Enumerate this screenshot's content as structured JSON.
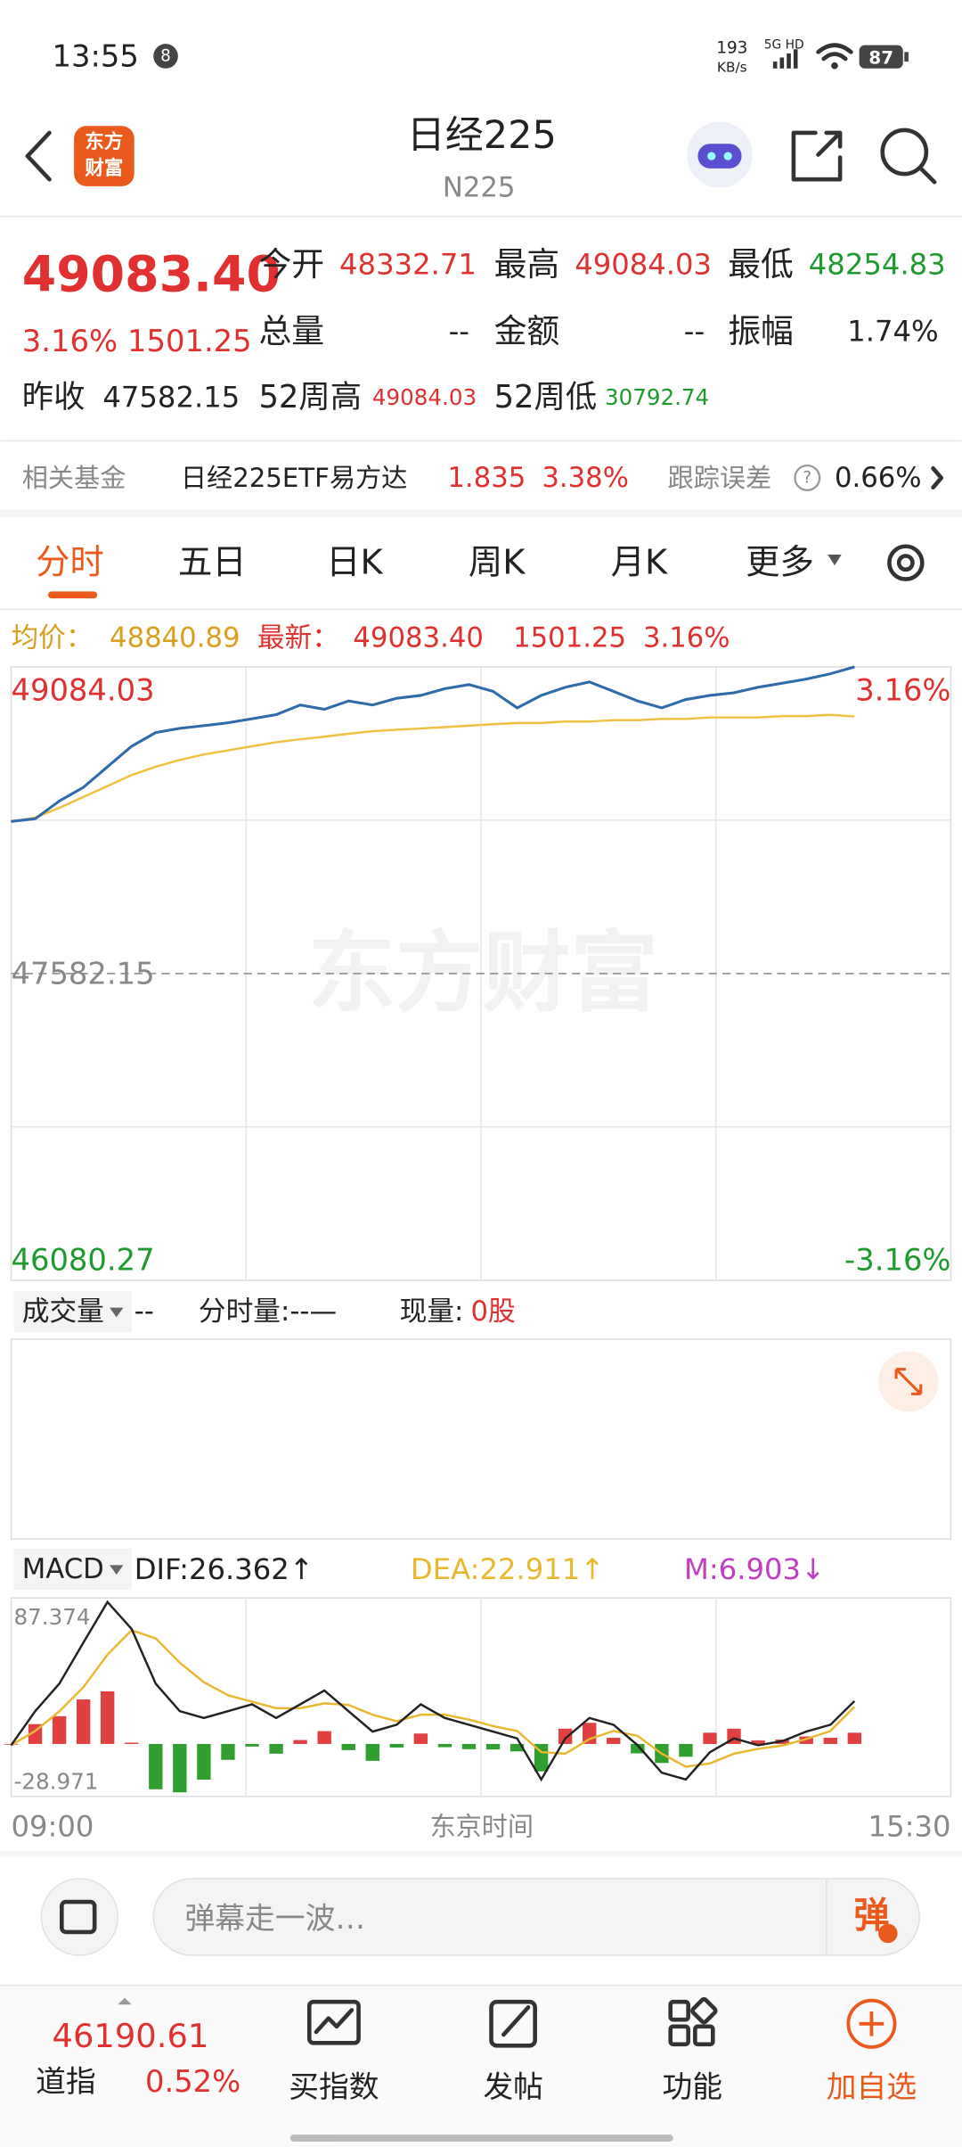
{
  "status_bar": {
    "time": "13:55",
    "badge": "8",
    "speed": "193",
    "speed_unit": "KB/s",
    "network": "5G HD",
    "battery": "87"
  },
  "header": {
    "logo_top": "东方",
    "logo_bottom": "财富",
    "title": "日经225",
    "code": "N225"
  },
  "quote": {
    "price": "49083.40",
    "change_pct": "3.16%",
    "change": "1501.25",
    "fields": [
      {
        "label": "今开",
        "value": "48332.71"
      },
      {
        "label": "最高",
        "value": "49084.03"
      },
      {
        "label": "最低",
        "value": "48254.83"
      },
      {
        "label": "总量",
        "value": "--"
      },
      {
        "label": "金额",
        "value": "--"
      },
      {
        "label": "振幅",
        "value": "1.74%"
      },
      {
        "label": "昨收",
        "value": "47582.15"
      },
      {
        "label": "52周高",
        "value": "49084.03"
      },
      {
        "label": "52周低",
        "value": "30792.74"
      }
    ]
  },
  "fund": {
    "label": "相关基金",
    "name": "日经225ETF易方达",
    "price": "1.835",
    "pct": "3.38%",
    "error_label": "跟踪误差",
    "error": "0.66%"
  },
  "tabs": [
    "分时",
    "五日",
    "日K",
    "周K",
    "月K",
    "更多"
  ],
  "info": {
    "avg": "48840.89"
  },
  "volume": {
    "label": "成交量",
    "value": "--",
    "time_volume": "分时量:--—",
    "current_label": "现量:",
    "current": "0股"
  },
  "comment": {
    "placeholder": "弹幕走一波…",
    "button": "弹"
  },
  "bottom_bar": {
    "index_value": "46190.61",
    "index_name": "道指",
    "index_pct": "0.52%",
    "nav": [
      "买指数",
      "发帖",
      "功能",
      "加自选"
    ]
  },
  "chart_data": [
    {
      "type": "line",
      "watermark": "东方财富",
      "ylim": [
        46080.27,
        49084.03
      ],
      "yticks": [
        46080.27,
        47582.15,
        49084.03
      ],
      "y2lim": [
        -3.16,
        3.16
      ],
      "y2ticks": [
        {
          "value": -3.16,
          "label": "-3.16%"
        },
        {
          "value": 3.16,
          "label": "3.16%"
        }
      ],
      "series": [
        {
          "name": "最新：",
          "color": "#2e6bab",
          "values": [
            48327,
            48340,
            48427,
            48494,
            48595,
            48695,
            48762,
            48783,
            48796,
            48810,
            48830,
            48850,
            48897,
            48876,
            48917,
            48897,
            48930,
            48944,
            48977,
            48997,
            48964,
            48883,
            48944,
            48984,
            49010,
            48964,
            48917,
            48883,
            48924,
            48944,
            48957,
            48984,
            49004,
            49024,
            49050,
            49083.4,
            null,
            null,
            null,
            null
          ]
        },
        {
          "name": "均价：",
          "color": "#f0c040",
          "values": [
            48326,
            48346,
            48393,
            48447,
            48500,
            48554,
            48595,
            48628,
            48655,
            48675,
            48695,
            48715,
            48729,
            48742,
            48756,
            48769,
            48776,
            48782,
            48789,
            48796,
            48803,
            48809,
            48809,
            48816,
            48816,
            48823,
            48823,
            48829,
            48829,
            48836,
            48836,
            48836,
            48843,
            48843,
            48849,
            48841,
            null,
            null,
            null,
            null
          ]
        }
      ]
    },
    {
      "type": "macd",
      "indicator": "MACD",
      "x_start": "09:00",
      "x_title": "东京时间",
      "x_end": "15:30",
      "ylim": [
        -28.971,
        87.374
      ],
      "yticks": [
        -28.971,
        87.374
      ],
      "up_color": "#e04040",
      "down_color": "#2fa02f",
      "series": [
        {
          "name": "DIF:",
          "trend": "↑",
          "color": "#222222",
          "values": [
            -0.8,
            20.2,
            37.1,
            62.4,
            87.4,
            70.8,
            37.1,
            20.2,
            16,
            20.2,
            24.4,
            16,
            24.4,
            32.9,
            20.2,
            7.6,
            11.8,
            24.4,
            16,
            11.8,
            7.6,
            3.4,
            -21.9,
            3.4,
            16,
            11.8,
            -0.8,
            -17.7,
            -21.9,
            -5.1,
            3.4,
            -0.8,
            1.7,
            7.6,
            11.8,
            26.362,
            null,
            null,
            null,
            null
          ]
        },
        {
          "name": "DEA:",
          "trend": "↑",
          "color": "#e8b830",
          "values": [
            -0.8,
            8,
            20,
            35,
            55,
            70,
            65,
            50,
            38,
            30,
            26,
            22,
            22,
            25,
            24,
            18,
            14,
            18,
            18,
            15,
            11,
            8,
            -5,
            -6,
            3,
            8,
            5,
            -6,
            -14,
            -12,
            -6,
            -3,
            -1,
            3,
            8,
            22.911,
            null,
            null,
            null,
            null
          ]
        },
        {
          "name": "M:",
          "trend": "↓",
          "color": "#c03ec0",
          "values": [
            0,
            12.2,
            17.1,
            27.4,
            32.4,
            0.8,
            -27.9,
            -29.8,
            -22,
            -9.8,
            -1.6,
            -6,
            2.4,
            7.9,
            -3.8,
            -10.4,
            -2.2,
            6.4,
            -2,
            -3.2,
            -3.4,
            -4.6,
            -16.9,
            9.4,
            13,
            3.8,
            -5.8,
            -11.7,
            -7.9,
            6.9,
            9.4,
            2.2,
            2.7,
            4.6,
            3.8,
            6.903,
            null,
            null,
            null,
            null
          ]
        }
      ]
    }
  ]
}
